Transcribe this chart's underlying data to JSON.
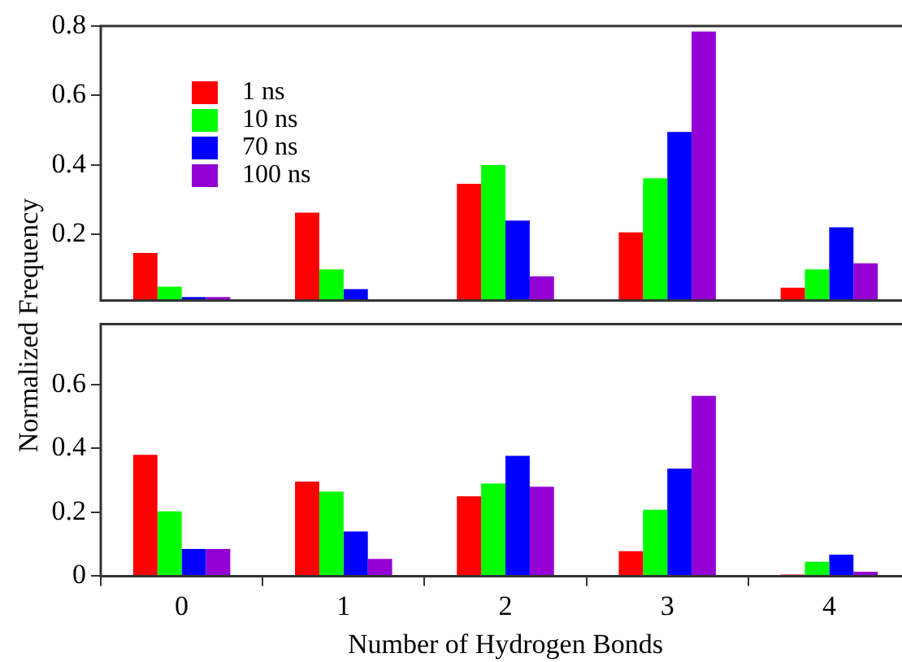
{
  "chart_data": [
    {
      "type": "bar",
      "ylabel": "Normalized Frequency",
      "categories": [
        "0",
        "1",
        "2",
        "3",
        "4"
      ],
      "ylim": [
        0.01,
        0.8
      ],
      "yticks": [
        0.2,
        0.4,
        0.6,
        0.8
      ],
      "tick_labels": "y",
      "legend": "top left",
      "grid": false,
      "series": [
        {
          "name": "1 ns",
          "color": "#ff0000",
          "values": [
            0.147,
            0.263,
            0.346,
            0.206,
            0.047
          ]
        },
        {
          "name": "10 ns",
          "color": "#00ff00",
          "values": [
            0.05,
            0.1,
            0.4,
            0.362,
            0.1
          ]
        },
        {
          "name": "70 ns",
          "color": "#0000ff",
          "values": [
            0.02,
            0.043,
            0.24,
            0.495,
            0.221
          ]
        },
        {
          "name": "100 ns",
          "color": "#9400d3",
          "values": [
            0.02,
            null,
            0.08,
            0.784,
            0.117
          ]
        }
      ]
    },
    {
      "type": "bar",
      "xlabel": "Number of Hydrogen Bonds",
      "categories": [
        "0",
        "1",
        "2",
        "3",
        "4"
      ],
      "ylim": [
        0,
        0.79
      ],
      "yticks": [
        0,
        0.2,
        0.4,
        0.6
      ],
      "legend": false,
      "grid": false,
      "series": [
        {
          "color": "#ff0000",
          "values": [
            0.38,
            0.296,
            0.25,
            0.078,
            0.005
          ]
        },
        {
          "color": "#00ff00",
          "values": [
            0.203,
            0.265,
            0.29,
            0.208,
            0.045
          ]
        },
        {
          "color": "#0000ff",
          "values": [
            0.085,
            0.14,
            0.377,
            0.337,
            0.067
          ]
        },
        {
          "color": "#9400d3",
          "values": [
            0.085,
            0.054,
            0.28,
            0.565,
            0.014
          ]
        }
      ]
    }
  ]
}
